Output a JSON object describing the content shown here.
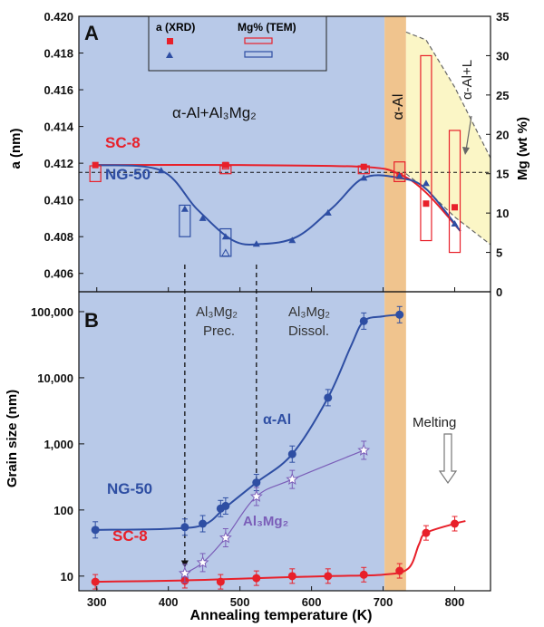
{
  "colors": {
    "red": "#e8202a",
    "blue": "#2e4ea3",
    "purple": "#7a5db8",
    "bg_blue": "#b8c9e8",
    "orange": "#f0c48e",
    "yellow": "#fbf6c6"
  },
  "chart_data": [
    {
      "panel": "A",
      "type": "scatter",
      "xlim": [
        275,
        850
      ],
      "ylim": [
        0.405,
        0.42
      ],
      "y2lim": [
        0,
        35
      ],
      "ylabel": "a (nm)",
      "y2label": "Mg (wt %)",
      "yticks": [
        "0.406",
        "0.408",
        "0.410",
        "0.412",
        "0.414",
        "0.416",
        "0.418",
        "0.420"
      ],
      "y2ticks": [
        "0",
        "5",
        "10",
        "15",
        "20",
        "25",
        "30",
        "35"
      ],
      "legend": {
        "col1": "a (XRD)",
        "col2": "Mg% (TEM)",
        "placement": "top"
      },
      "annotations": {
        "phase_left": "α-Al+Al₃Mg₂",
        "phase_mid": "α-Al",
        "phase_right": "α-Al+L",
        "sc_label": "SC-8",
        "ng_label": "NG-50"
      },
      "series": [
        {
          "name": "SC-8",
          "marker": "square",
          "color": "red",
          "points": [
            [
              298,
              0.4119
            ],
            [
              480,
              0.4119
            ],
            [
              673,
              0.4118
            ],
            [
              723,
              0.4113
            ],
            [
              760,
              0.4098
            ],
            [
              800,
              0.4096
            ]
          ]
        },
        {
          "name": "NG-50",
          "marker": "triangle",
          "color": "blue",
          "points": [
            [
              390,
              0.4116
            ],
            [
              423,
              0.4095
            ],
            [
              448,
              0.409
            ],
            [
              480,
              0.408
            ],
            [
              523,
              0.4076
            ],
            [
              573,
              0.4078
            ],
            [
              623,
              0.4093
            ],
            [
              673,
              0.4112
            ],
            [
              723,
              0.4113
            ],
            [
              760,
              0.4109
            ],
            [
              800,
              0.4087
            ]
          ]
        }
      ],
      "mg_bars": [
        {
          "color": "red",
          "x": 298,
          "lo": 14,
          "hi": 16
        },
        {
          "color": "red",
          "x": 480,
          "lo": 15,
          "hi": 16
        },
        {
          "color": "red",
          "x": 673,
          "lo": 15,
          "hi": 16
        },
        {
          "color": "red",
          "x": 723,
          "lo": 14,
          "hi": 16.5
        },
        {
          "color": "red",
          "x": 760,
          "lo": 6.5,
          "hi": 30
        },
        {
          "color": "red",
          "x": 800,
          "lo": 5,
          "hi": 20.5
        },
        {
          "color": "blue",
          "x": 423,
          "lo": 7,
          "hi": 11
        },
        {
          "color": "blue",
          "x": 480,
          "lo": 4.5,
          "hi": 8
        }
      ],
      "reference_y": 0.4115
    },
    {
      "panel": "B",
      "type": "scatter",
      "xlim": [
        275,
        850
      ],
      "ylim": [
        6,
        200000
      ],
      "log_y": true,
      "xlabel": "Annealing temperature (K)",
      "ylabel": "Grain size (nm)",
      "xticks": [
        "300",
        "400",
        "500",
        "600",
        "700",
        "800"
      ],
      "yticks": [
        "10",
        "100",
        "1,000",
        "10,000",
        "100,000"
      ],
      "annotations": {
        "prec_1": "Al₃Mg₂",
        "prec_2": "Prec.",
        "diss_1": "Al₃Mg₂",
        "diss_2": "Dissol.",
        "alpha": "α-Al",
        "almg": "Al₃Mg₂",
        "melting": "Melting",
        "sc_label": "SC-8",
        "ng_label": "NG-50"
      },
      "series": [
        {
          "name": "NG-50",
          "color": "blue",
          "points": [
            [
              298,
              50
            ],
            [
              423,
              55
            ],
            [
              448,
              62
            ],
            [
              473,
              105
            ],
            [
              480,
              115
            ],
            [
              523,
              260
            ],
            [
              573,
              700
            ],
            [
              623,
              5000
            ],
            [
              673,
              72000
            ],
            [
              723,
              90000
            ]
          ]
        },
        {
          "name": "SC-8",
          "color": "red",
          "points": [
            [
              298,
              8.2
            ],
            [
              423,
              8.5
            ],
            [
              473,
              8.2
            ],
            [
              523,
              9.3
            ],
            [
              573,
              10
            ],
            [
              623,
              10
            ],
            [
              673,
              10.5
            ],
            [
              723,
              12
            ],
            [
              760,
              45
            ],
            [
              800,
              62
            ]
          ]
        },
        {
          "name": "Al₃Mg₂",
          "color": "purple",
          "points": [
            [
              423,
              11
            ],
            [
              448,
              16
            ],
            [
              480,
              38
            ],
            [
              523,
              160
            ],
            [
              573,
              290
            ],
            [
              673,
              800
            ]
          ]
        }
      ]
    }
  ]
}
